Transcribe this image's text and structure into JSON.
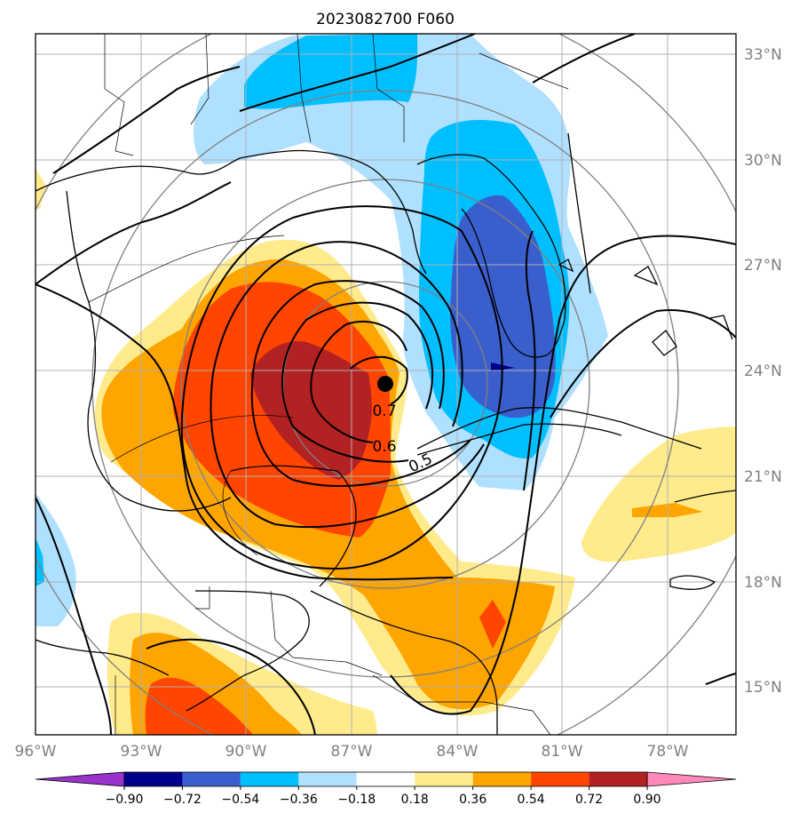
{
  "title": "2023082700 F060",
  "lon_ticks": [
    "96°W",
    "93°W",
    "90°W",
    "87°W",
    "84°W",
    "81°W",
    "78°W"
  ],
  "lat_ticks": [
    "33°N",
    "30°N",
    "27°N",
    "24°N",
    "21°N",
    "18°N",
    "15°N"
  ],
  "colorbar": {
    "ticks": [
      "−0.90",
      "−0.72",
      "−0.54",
      "−0.36",
      "−0.18",
      "0.18",
      "0.36",
      "0.54",
      "0.72",
      "0.90"
    ],
    "colors": [
      "#9933cc",
      "#00008b",
      "#3a5fcd",
      "#00bfff",
      "#b0e0ff",
      "#ffffff",
      "#ffeb8c",
      "#ffa500",
      "#ff4500",
      "#b22222",
      "#ff88bb"
    ]
  },
  "contour_labels": [
    "0.7",
    "0.6",
    "0.5"
  ],
  "colors": {
    "dark_red": "#b22222",
    "red": "#ff4500",
    "orange": "#ffa500",
    "yellow": "#ffeb8c",
    "light_blue": "#b0e0ff",
    "blue": "#00bfff",
    "mid_blue": "#3a5fcd",
    "navy": "#00008b",
    "grid": "#b0b0b0",
    "ring": "#808080"
  }
}
